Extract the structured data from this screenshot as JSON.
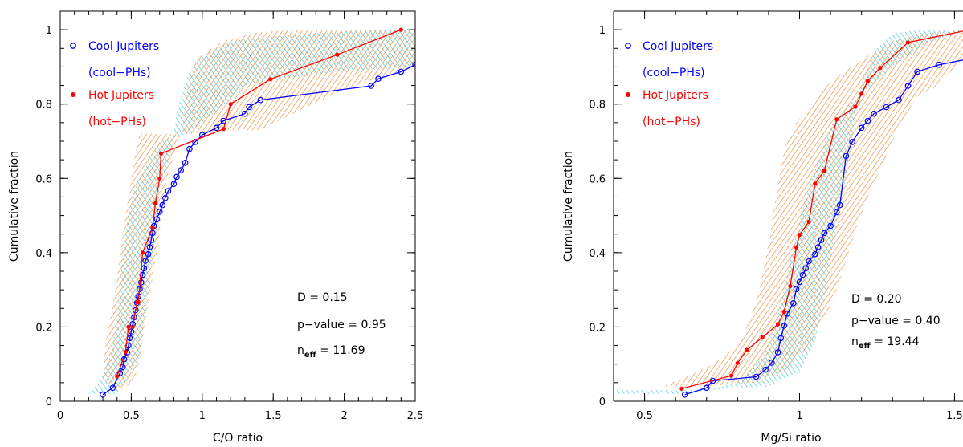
{
  "chart_data": [
    {
      "type": "line",
      "xlabel": "C/O ratio",
      "ylabel": "Cumulative fraction",
      "xlim": [
        0,
        2.5
      ],
      "ylim": [
        0,
        1.05
      ],
      "xticks": [
        0,
        0.5,
        1,
        1.5,
        2,
        2.5
      ],
      "xtick_labels": [
        "0",
        "0.5",
        "1",
        "1.5",
        "2",
        "2.5"
      ],
      "yticks": [
        0,
        0.2,
        0.4,
        0.6,
        0.8,
        1
      ],
      "ytick_labels": [
        "0",
        "0.2",
        "0.4",
        "0.6",
        "0.8",
        "1"
      ],
      "grid": false,
      "legend_position": "top-left",
      "series": [
        {
          "name": "Cool Jupiters",
          "name_line2": "(cool−PHs)",
          "color": "#0000ff",
          "marker": "open-circle",
          "x": [
            0.3,
            0.37,
            0.42,
            0.44,
            0.45,
            0.47,
            0.48,
            0.49,
            0.5,
            0.51,
            0.52,
            0.53,
            0.54,
            0.55,
            0.56,
            0.57,
            0.58,
            0.59,
            0.6,
            0.62,
            0.63,
            0.64,
            0.65,
            0.66,
            0.68,
            0.7,
            0.72,
            0.74,
            0.76,
            0.8,
            0.82,
            0.85,
            0.88,
            0.91,
            0.95,
            1.0,
            1.1,
            1.15,
            1.3,
            1.33,
            1.41,
            2.19,
            2.24,
            2.4,
            2.5
          ],
          "y": [
            0.018,
            0.036,
            0.075,
            0.092,
            0.113,
            0.132,
            0.15,
            0.17,
            0.188,
            0.208,
            0.226,
            0.245,
            0.265,
            0.283,
            0.302,
            0.32,
            0.34,
            0.358,
            0.378,
            0.396,
            0.415,
            0.434,
            0.453,
            0.472,
            0.49,
            0.51,
            0.528,
            0.547,
            0.566,
            0.585,
            0.604,
            0.622,
            0.642,
            0.679,
            0.698,
            0.717,
            0.736,
            0.755,
            0.774,
            0.792,
            0.811,
            0.849,
            0.868,
            0.887,
            0.906
          ]
        },
        {
          "name": "Hot Jupiters",
          "name_line2": "(hot−PHs)",
          "color": "#ff0000",
          "marker": "filled-circle",
          "x": [
            0.4,
            0.46,
            0.48,
            0.51,
            0.54,
            0.55,
            0.58,
            0.65,
            0.67,
            0.7,
            0.71,
            1.15,
            1.2,
            1.48,
            1.95,
            2.4
          ],
          "y": [
            0.067,
            0.133,
            0.2,
            0.2,
            0.267,
            0.267,
            0.4,
            0.467,
            0.533,
            0.6,
            0.667,
            0.733,
            0.8,
            0.867,
            0.933,
            1.0
          ]
        }
      ],
      "annotations": {
        "D": "D  =  0.15",
        "p": "p−value  =  0.95",
        "neff_label": "n",
        "neff_sub": "eff",
        "neff_value": "  =  11.69"
      }
    },
    {
      "type": "line",
      "xlabel": "Mg/Si ratio",
      "ylabel": "Cumulative fraction",
      "xlim": [
        0.4,
        1.6
      ],
      "ylim": [
        0,
        1.05
      ],
      "xticks": [
        0.5,
        1,
        1.5
      ],
      "xtick_labels": [
        "0.5",
        "1",
        "1.5"
      ],
      "yticks": [
        0,
        0.2,
        0.4,
        0.6,
        0.8,
        1
      ],
      "ytick_labels": [
        "0",
        "0.2",
        "0.4",
        "0.6",
        "0.8",
        "1"
      ],
      "grid": false,
      "legend_position": "top-left",
      "series": [
        {
          "name": "Cool Jupiters",
          "name_line2": "(cool−PHs)",
          "color": "#0000ff",
          "marker": "open-circle",
          "x": [
            0.63,
            0.7,
            0.72,
            0.86,
            0.89,
            0.91,
            0.93,
            0.94,
            0.95,
            0.96,
            0.98,
            0.99,
            1.0,
            1.01,
            1.02,
            1.03,
            1.05,
            1.06,
            1.07,
            1.08,
            1.1,
            1.12,
            1.13,
            1.15,
            1.17,
            1.2,
            1.22,
            1.24,
            1.28,
            1.32,
            1.35,
            1.38,
            1.45,
            1.56,
            1.6
          ],
          "y": [
            0.018,
            0.036,
            0.055,
            0.066,
            0.085,
            0.104,
            0.132,
            0.17,
            0.203,
            0.236,
            0.264,
            0.302,
            0.321,
            0.34,
            0.358,
            0.377,
            0.396,
            0.415,
            0.434,
            0.453,
            0.472,
            0.509,
            0.528,
            0.66,
            0.698,
            0.736,
            0.755,
            0.774,
            0.792,
            0.811,
            0.849,
            0.887,
            0.906,
            0.924,
            0.943
          ]
        },
        {
          "name": "Hot Jupiters",
          "name_line2": "(hot−PHs)",
          "color": "#ff0000",
          "marker": "filled-circle",
          "x": [
            0.62,
            0.78,
            0.8,
            0.83,
            0.88,
            0.93,
            0.95,
            0.97,
            0.99,
            1.0,
            1.03,
            1.05,
            1.08,
            1.12,
            1.18,
            1.2,
            1.22,
            1.26,
            1.35,
            1.55,
            1.6
          ],
          "y": [
            0.034,
            0.069,
            0.103,
            0.138,
            0.172,
            0.207,
            0.241,
            0.31,
            0.414,
            0.448,
            0.483,
            0.586,
            0.621,
            0.759,
            0.793,
            0.828,
            0.862,
            0.897,
            0.966,
            1.0,
            1.0
          ]
        }
      ],
      "annotations": {
        "D": "D  =  0.20",
        "p": "p−value  =  0.40",
        "neff_label": "n",
        "neff_sub": "eff",
        "neff_value": "  =  19.44"
      }
    }
  ],
  "colors": {
    "cool": "#0000ff",
    "hot": "#ff0000",
    "cool_band": "#33c6dd",
    "hot_band": "#ee8833"
  }
}
